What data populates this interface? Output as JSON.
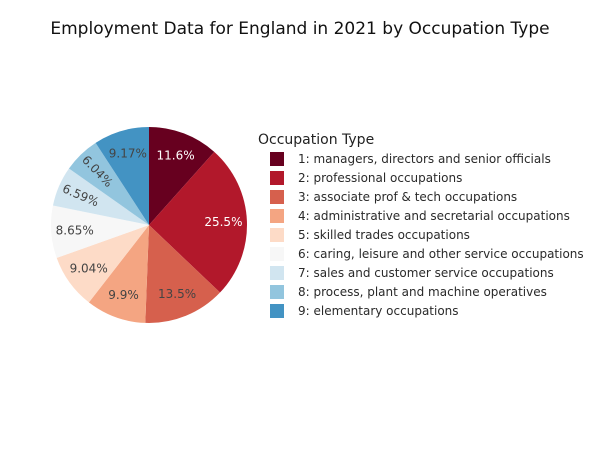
{
  "chart_data": {
    "type": "pie",
    "title": "Employment Data for England in 2021 by Occupation Type",
    "legend_title": "Occupation Type",
    "legend_position": "right",
    "direction": "clockwise",
    "start_angle_deg": 0,
    "categories": [
      "1: managers, directors and senior officials",
      "2: professional occupations",
      "3: associate prof & tech occupations",
      "4: administrative and secretarial occupations",
      "5: skilled trades occupations",
      "6: caring, leisure and other service occupations",
      "7: sales and customer service occupations",
      "8: process, plant and machine operatives",
      "9: elementary occupations"
    ],
    "values": [
      11.6,
      25.5,
      13.5,
      9.9,
      9.04,
      8.65,
      6.59,
      6.04,
      9.17
    ],
    "labels": [
      "11.6%",
      "25.5%",
      "13.5%",
      "9.9%",
      "9.04%",
      "8.65%",
      "6.59%",
      "6.04%",
      "9.17%"
    ],
    "colors": [
      "#67001f",
      "#b2182b",
      "#d6604d",
      "#f4a582",
      "#fddbc7",
      "#f7f7f7",
      "#d1e5f0",
      "#92c5de",
      "#4393c3"
    ],
    "label_colors": [
      "#ffffff",
      "#ffffff",
      "#444444",
      "#444444",
      "#444444",
      "#444444",
      "#444444",
      "#444444",
      "#444444"
    ]
  }
}
